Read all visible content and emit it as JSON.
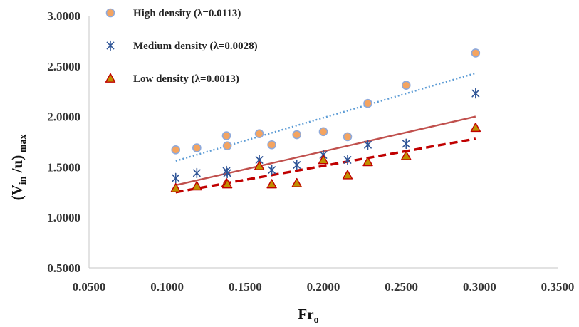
{
  "chart_data": {
    "type": "scatter",
    "xlabel": "Fr",
    "xlabel_sub": "o",
    "ylabel_main": "(V",
    "ylabel_sub1": "in",
    "ylabel_mid": " /u)",
    "ylabel_sub2": " max",
    "xlim": [
      0.05,
      0.35
    ],
    "ylim": [
      0.5,
      3.0
    ],
    "x_ticks": [
      "0.0500",
      "0.1000",
      "0.1500",
      "0.2000",
      "0.2500",
      "0.3000",
      "0.3500"
    ],
    "x_tick_values": [
      0.05,
      0.1,
      0.15,
      0.2,
      0.25,
      0.3,
      0.35
    ],
    "y_ticks": [
      "0.5000",
      "1.0000",
      "1.5000",
      "2.0000",
      "2.5000",
      "3.0000"
    ],
    "y_tick_values": [
      0.5,
      1.0,
      1.5,
      2.0,
      2.5,
      3.0
    ],
    "grid": false,
    "legend_position": "top-left",
    "series": [
      {
        "name": "High density (λ=0.0113)",
        "marker": "circle",
        "color": "#F4A460",
        "edge_color": "#8EA9DB",
        "points": [
          [
            0.1055,
            1.67
          ],
          [
            0.119,
            1.69
          ],
          [
            0.138,
            1.81
          ],
          [
            0.1385,
            1.71
          ],
          [
            0.159,
            1.83
          ],
          [
            0.167,
            1.72
          ],
          [
            0.183,
            1.82
          ],
          [
            0.2,
            1.85
          ],
          [
            0.2155,
            1.8
          ],
          [
            0.2285,
            2.13
          ],
          [
            0.253,
            2.31
          ],
          [
            0.2975,
            2.63
          ]
        ],
        "trendline": {
          "style": "dotted",
          "color": "#5B9BD5",
          "from": [
            0.1055,
            1.56
          ],
          "to": [
            0.2975,
            2.43
          ]
        }
      },
      {
        "name": "Medium density (λ=0.0028)",
        "marker": "asterisk",
        "color": "#2F5597",
        "points": [
          [
            0.1055,
            1.39
          ],
          [
            0.119,
            1.44
          ],
          [
            0.138,
            1.46
          ],
          [
            0.1385,
            1.44
          ],
          [
            0.159,
            1.57
          ],
          [
            0.167,
            1.47
          ],
          [
            0.183,
            1.52
          ],
          [
            0.2,
            1.62
          ],
          [
            0.2155,
            1.57
          ],
          [
            0.2285,
            1.72
          ],
          [
            0.253,
            1.73
          ],
          [
            0.2975,
            2.23
          ]
        ],
        "trendline": {
          "style": "solid",
          "color": "#C0504D",
          "from": [
            0.1055,
            1.32
          ],
          "to": [
            0.2975,
            2.0
          ]
        }
      },
      {
        "name": "Low density (λ=0.0013)",
        "marker": "triangle",
        "color": "#BF9000",
        "edge_color": "#C00000",
        "points": [
          [
            0.1055,
            1.29
          ],
          [
            0.119,
            1.31
          ],
          [
            0.138,
            1.34
          ],
          [
            0.1385,
            1.33
          ],
          [
            0.159,
            1.51
          ],
          [
            0.167,
            1.33
          ],
          [
            0.183,
            1.34
          ],
          [
            0.2,
            1.57
          ],
          [
            0.2155,
            1.42
          ],
          [
            0.2285,
            1.55
          ],
          [
            0.253,
            1.61
          ],
          [
            0.2975,
            1.89
          ]
        ],
        "trendline": {
          "style": "dashed",
          "color": "#C00000",
          "from": [
            0.1055,
            1.25
          ],
          "to": [
            0.2975,
            1.78
          ]
        }
      }
    ]
  }
}
